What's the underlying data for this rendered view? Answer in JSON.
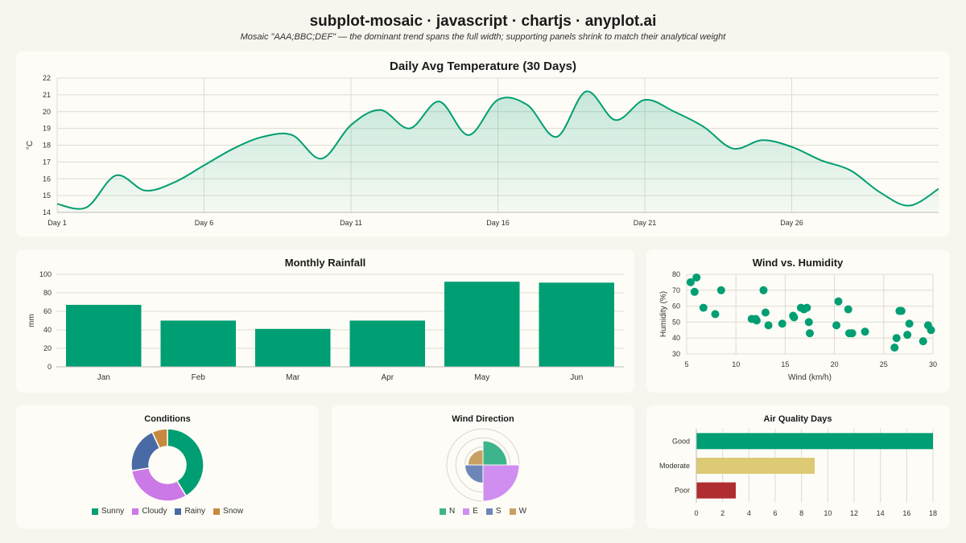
{
  "header": {
    "title": "subplot-mosaic · javascript · chartjs · anyplot.ai",
    "subtitle": "Mosaic \"AAA;BBC;DEF\" — the dominant trend spans the full width; supporting panels shrink to match their analytical weight"
  },
  "chart_data": [
    {
      "type": "area",
      "title": "Daily Avg Temperature (30 Days)",
      "ylabel": "°C",
      "xlabel": "",
      "x": [
        "Day 1",
        "Day 2",
        "Day 3",
        "Day 4",
        "Day 5",
        "Day 6",
        "Day 7",
        "Day 8",
        "Day 9",
        "Day 10",
        "Day 11",
        "Day 12",
        "Day 13",
        "Day 14",
        "Day 15",
        "Day 16",
        "Day 17",
        "Day 18",
        "Day 19",
        "Day 20",
        "Day 21",
        "Day 22",
        "Day 23",
        "Day 24",
        "Day 25",
        "Day 26",
        "Day 27",
        "Day 28",
        "Day 29",
        "Day 30"
      ],
      "x_tick_labels": [
        "Day 1",
        "Day 6",
        "Day 11",
        "Day 16",
        "Day 21",
        "Day 26"
      ],
      "y_ticks": [
        "14",
        "15",
        "16",
        "17",
        "18",
        "19",
        "20",
        "21",
        "22"
      ],
      "values": [
        14.5,
        14.3,
        16.2,
        15.3,
        15.8,
        16.8,
        17.8,
        18.5,
        18.6,
        17.2,
        19.2,
        20.1,
        19.0,
        20.6,
        18.6,
        20.7,
        20.4,
        18.5,
        21.2,
        19.5,
        20.7,
        20.0,
        19.1,
        17.8,
        18.3,
        17.9,
        17.1,
        16.5,
        15.2,
        14.4
      ],
      "extra_end_value": 15.4,
      "ylim": [
        14,
        22
      ],
      "grid": true,
      "color": "#009e73"
    },
    {
      "type": "bar",
      "title": "Monthly Rainfall",
      "ylabel": "mm",
      "xlabel": "",
      "categories": [
        "Jan",
        "Feb",
        "Mar",
        "Apr",
        "May",
        "Jun"
      ],
      "values": [
        67,
        50,
        41,
        50,
        92,
        91
      ],
      "y_ticks": [
        "0",
        "20",
        "40",
        "60",
        "80",
        "100"
      ],
      "ylim": [
        0,
        100
      ],
      "color": "#009e73"
    },
    {
      "type": "scatter",
      "title": "Wind vs. Humidity",
      "xlabel": "Wind (km/h)",
      "ylabel": "Humidity (%)",
      "x_ticks": [
        "5",
        "10",
        "15",
        "20",
        "25",
        "30"
      ],
      "y_ticks": [
        "30",
        "40",
        "50",
        "60",
        "70",
        "80"
      ],
      "xlim": [
        5,
        30
      ],
      "ylim": [
        30,
        80
      ],
      "points": [
        [
          5.4,
          75
        ],
        [
          6.0,
          78
        ],
        [
          5.8,
          69
        ],
        [
          6.7,
          59
        ],
        [
          7.9,
          55
        ],
        [
          8.5,
          70
        ],
        [
          11.6,
          52
        ],
        [
          12.1,
          51
        ],
        [
          12.0,
          52
        ],
        [
          12.8,
          70
        ],
        [
          13.0,
          56
        ],
        [
          13.3,
          48
        ],
        [
          14.7,
          49
        ],
        [
          15.8,
          54
        ],
        [
          15.9,
          53
        ],
        [
          16.6,
          59
        ],
        [
          16.9,
          58
        ],
        [
          17.2,
          59
        ],
        [
          17.4,
          50
        ],
        [
          17.5,
          43
        ],
        [
          20.2,
          48
        ],
        [
          20.4,
          63
        ],
        [
          21.4,
          58
        ],
        [
          21.5,
          43
        ],
        [
          21.8,
          43
        ],
        [
          23.1,
          44
        ],
        [
          26.1,
          34
        ],
        [
          26.3,
          40
        ],
        [
          26.6,
          57
        ],
        [
          26.8,
          57
        ],
        [
          27.4,
          42
        ],
        [
          27.6,
          49
        ],
        [
          29.0,
          38
        ],
        [
          29.5,
          48
        ],
        [
          29.8,
          45
        ]
      ],
      "color": "#009e73"
    },
    {
      "type": "pie",
      "title": "Conditions",
      "labels": [
        "Sunny",
        "Cloudy",
        "Rainy",
        "Snow"
      ],
      "values": [
        12,
        9,
        6,
        2
      ],
      "colors": [
        "#009e73",
        "#cc79e8",
        "#4a6aa5",
        "#c8893f"
      ]
    },
    {
      "type": "pie",
      "title": "Wind Direction",
      "subtype": "polar-area",
      "labels": [
        "N",
        "E",
        "S",
        "W"
      ],
      "values": [
        8,
        12,
        6,
        5
      ],
      "rmax": 12,
      "colors": [
        "#3db48c",
        "#d08ef0",
        "#6d86b8",
        "#c9a064"
      ]
    },
    {
      "type": "bar",
      "orientation": "horizontal",
      "title": "Air Quality Days",
      "categories": [
        "Good",
        "Moderate",
        "Poor"
      ],
      "values": [
        18,
        9,
        3
      ],
      "x_ticks": [
        "0",
        "2",
        "4",
        "6",
        "8",
        "10",
        "12",
        "14",
        "16",
        "18"
      ],
      "xlim": [
        0,
        18
      ],
      "colors": [
        "#009e73",
        "#dcca74",
        "#b02e30"
      ]
    }
  ]
}
